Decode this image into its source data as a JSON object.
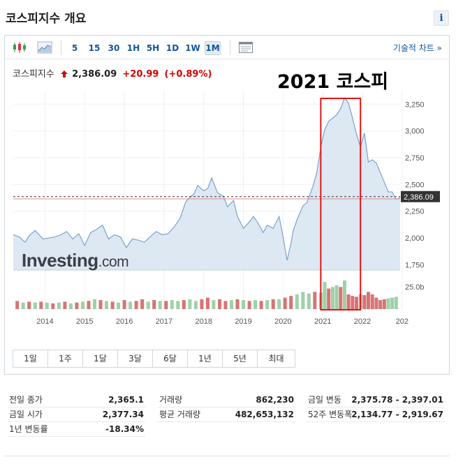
{
  "page": {
    "title": "코스피지수 개요",
    "info_label": "i"
  },
  "toolbar": {
    "intervals": [
      {
        "label": "5",
        "active": false
      },
      {
        "label": "15",
        "active": false
      },
      {
        "label": "30",
        "active": false
      },
      {
        "label": "1H",
        "active": false
      },
      {
        "label": "5H",
        "active": false
      },
      {
        "label": "1D",
        "active": false
      },
      {
        "label": "1W",
        "active": false
      },
      {
        "label": "1M",
        "active": true
      }
    ],
    "tech_chart_link": "기술적 차트 »"
  },
  "quote": {
    "name": "코스피지수",
    "price": "2,386.09",
    "change": "+20.99",
    "change_pct": "(+0.89%)"
  },
  "annotation": {
    "text": "2021 코스피",
    "box_color": "#e01515"
  },
  "ranges": [
    "1일",
    "1주",
    "1달",
    "3달",
    "6달",
    "1년",
    "5년",
    "최대"
  ],
  "watermark": {
    "brand": "Investing",
    "suffix": ".com"
  },
  "colors": {
    "line": "#6f9ccb",
    "area": "#dde8f3",
    "vol_up": "#9fd1a8",
    "vol_down": "#d97373",
    "price_label_bg": "#333333",
    "prev_close_line": "#e08a8a"
  },
  "chart_data": {
    "type": "area",
    "x_unit": "year",
    "x_ticks": [
      "2014",
      "2015",
      "2016",
      "2017",
      "2018",
      "2019",
      "2020",
      "2021",
      "2022",
      "202"
    ],
    "y_ticks": [
      "3,250",
      "3,000",
      "2,750",
      "2,500",
      "2,250",
      "2,000",
      "1,750"
    ],
    "y_tick_values": [
      3250,
      3000,
      2750,
      2500,
      2250,
      2000,
      1750
    ],
    "ylim": [
      1700,
      3330
    ],
    "xlim": [
      2013.2,
      2022.95
    ],
    "volume_label": "25.0b",
    "volume_max": 40,
    "last_price_label": "2,386.09",
    "last_price": 2386.09,
    "prev_close": 2365.1,
    "highlight_range": [
      2020.95,
      2021.95
    ],
    "series": [
      {
        "x": [
          2013.2,
          2013.35,
          2013.5,
          2013.6,
          2013.75,
          2013.95,
          2014.1,
          2014.25,
          2014.4,
          2014.55,
          2014.7,
          2014.85,
          2015.0,
          2015.15,
          2015.3,
          2015.45,
          2015.6,
          2015.75,
          2015.9,
          2016.05,
          2016.2,
          2016.35,
          2016.5,
          2016.65,
          2016.8,
          2016.95,
          2017.1,
          2017.25,
          2017.4,
          2017.55,
          2017.65,
          2017.75,
          2017.85,
          2018.0,
          2018.1,
          2018.2,
          2018.35,
          2018.5,
          2018.6,
          2018.75,
          2018.85,
          2019.0,
          2019.15,
          2019.25,
          2019.35,
          2019.5,
          2019.6,
          2019.75,
          2019.9,
          2020.0,
          2020.1,
          2020.2,
          2020.25,
          2020.35,
          2020.5,
          2020.6,
          2020.75,
          2020.85,
          2020.95,
          2021.05,
          2021.15,
          2021.25,
          2021.35,
          2021.45,
          2021.55,
          2021.65,
          2021.75,
          2021.85,
          2021.95,
          2022.05,
          2022.15,
          2022.25,
          2022.35,
          2022.45,
          2022.55,
          2022.65,
          2022.75,
          2022.85,
          2022.95
        ],
        "y": [
          2030,
          2010,
          1960,
          2020,
          2070,
          1990,
          2000,
          2010,
          2030,
          2060,
          1990,
          2040,
          1930,
          2050,
          2080,
          2120,
          1990,
          2030,
          2010,
          1910,
          1990,
          1980,
          1960,
          2010,
          2060,
          2030,
          2040,
          2100,
          2180,
          2340,
          2380,
          2410,
          2490,
          2440,
          2460,
          2560,
          2420,
          2390,
          2290,
          2350,
          2200,
          2090,
          2150,
          2200,
          2150,
          2050,
          2120,
          2090,
          2200,
          2010,
          1790,
          1950,
          2060,
          2170,
          2300,
          2330,
          2480,
          2610,
          2850,
          3010,
          3090,
          3120,
          3150,
          3210,
          3310,
          3260,
          3120,
          2970,
          2850,
          2980,
          2710,
          2730,
          2700,
          2610,
          2520,
          2430,
          2430,
          2360,
          2380
        ]
      }
    ],
    "volume": [
      {
        "x": 2013.3,
        "v": 10,
        "dir": "down"
      },
      {
        "x": 2013.45,
        "v": 8,
        "dir": "up"
      },
      {
        "x": 2013.6,
        "v": 9,
        "dir": "down"
      },
      {
        "x": 2013.75,
        "v": 8,
        "dir": "up"
      },
      {
        "x": 2013.9,
        "v": 9,
        "dir": "down"
      },
      {
        "x": 2014.05,
        "v": 8,
        "dir": "up"
      },
      {
        "x": 2014.2,
        "v": 7,
        "dir": "down"
      },
      {
        "x": 2014.35,
        "v": 8,
        "dir": "up"
      },
      {
        "x": 2014.5,
        "v": 9,
        "dir": "down"
      },
      {
        "x": 2014.65,
        "v": 7,
        "dir": "up"
      },
      {
        "x": 2014.8,
        "v": 8,
        "dir": "down"
      },
      {
        "x": 2014.95,
        "v": 9,
        "dir": "up"
      },
      {
        "x": 2015.1,
        "v": 10,
        "dir": "down"
      },
      {
        "x": 2015.25,
        "v": 12,
        "dir": "up"
      },
      {
        "x": 2015.4,
        "v": 11,
        "dir": "down"
      },
      {
        "x": 2015.55,
        "v": 10,
        "dir": "up"
      },
      {
        "x": 2015.7,
        "v": 9,
        "dir": "down"
      },
      {
        "x": 2015.85,
        "v": 8,
        "dir": "up"
      },
      {
        "x": 2016.0,
        "v": 11,
        "dir": "down"
      },
      {
        "x": 2016.15,
        "v": 9,
        "dir": "up"
      },
      {
        "x": 2016.3,
        "v": 10,
        "dir": "down"
      },
      {
        "x": 2016.45,
        "v": 12,
        "dir": "down"
      },
      {
        "x": 2016.6,
        "v": 9,
        "dir": "up"
      },
      {
        "x": 2016.75,
        "v": 11,
        "dir": "down"
      },
      {
        "x": 2016.9,
        "v": 10,
        "dir": "up"
      },
      {
        "x": 2017.05,
        "v": 10,
        "dir": "down"
      },
      {
        "x": 2017.2,
        "v": 11,
        "dir": "up"
      },
      {
        "x": 2017.35,
        "v": 10,
        "dir": "up"
      },
      {
        "x": 2017.5,
        "v": 11,
        "dir": "down"
      },
      {
        "x": 2017.65,
        "v": 12,
        "dir": "up"
      },
      {
        "x": 2017.8,
        "v": 10,
        "dir": "up"
      },
      {
        "x": 2017.95,
        "v": 12,
        "dir": "down"
      },
      {
        "x": 2018.1,
        "v": 14,
        "dir": "down"
      },
      {
        "x": 2018.25,
        "v": 11,
        "dir": "up"
      },
      {
        "x": 2018.4,
        "v": 12,
        "dir": "down"
      },
      {
        "x": 2018.55,
        "v": 10,
        "dir": "down"
      },
      {
        "x": 2018.7,
        "v": 11,
        "dir": "up"
      },
      {
        "x": 2018.85,
        "v": 12,
        "dir": "down"
      },
      {
        "x": 2019.0,
        "v": 11,
        "dir": "up"
      },
      {
        "x": 2019.15,
        "v": 10,
        "dir": "down"
      },
      {
        "x": 2019.3,
        "v": 11,
        "dir": "up"
      },
      {
        "x": 2019.45,
        "v": 10,
        "dir": "down"
      },
      {
        "x": 2019.6,
        "v": 11,
        "dir": "up"
      },
      {
        "x": 2019.75,
        "v": 12,
        "dir": "down"
      },
      {
        "x": 2019.9,
        "v": 12,
        "dir": "up"
      },
      {
        "x": 2020.05,
        "v": 14,
        "dir": "down"
      },
      {
        "x": 2020.2,
        "v": 16,
        "dir": "down"
      },
      {
        "x": 2020.35,
        "v": 18,
        "dir": "up"
      },
      {
        "x": 2020.5,
        "v": 21,
        "dir": "up"
      },
      {
        "x": 2020.65,
        "v": 19,
        "dir": "up"
      },
      {
        "x": 2020.8,
        "v": 21,
        "dir": "down"
      },
      {
        "x": 2020.95,
        "v": 20,
        "dir": "up"
      },
      {
        "x": 2021.05,
        "v": 33,
        "dir": "up"
      },
      {
        "x": 2021.15,
        "v": 25,
        "dir": "down"
      },
      {
        "x": 2021.25,
        "v": 27,
        "dir": "up"
      },
      {
        "x": 2021.35,
        "v": 29,
        "dir": "up"
      },
      {
        "x": 2021.45,
        "v": 27,
        "dir": "down"
      },
      {
        "x": 2021.55,
        "v": 35,
        "dir": "up"
      },
      {
        "x": 2021.65,
        "v": 18,
        "dir": "down"
      },
      {
        "x": 2021.75,
        "v": 16,
        "dir": "down"
      },
      {
        "x": 2021.85,
        "v": 15,
        "dir": "down"
      },
      {
        "x": 2021.95,
        "v": 18,
        "dir": "up"
      },
      {
        "x": 2022.05,
        "v": 17,
        "dir": "down"
      },
      {
        "x": 2022.15,
        "v": 21,
        "dir": "down"
      },
      {
        "x": 2022.25,
        "v": 18,
        "dir": "down"
      },
      {
        "x": 2022.35,
        "v": 14,
        "dir": "down"
      },
      {
        "x": 2022.45,
        "v": 11,
        "dir": "down"
      },
      {
        "x": 2022.55,
        "v": 12,
        "dir": "down"
      },
      {
        "x": 2022.65,
        "v": 13,
        "dir": "up"
      },
      {
        "x": 2022.75,
        "v": 14,
        "dir": "up"
      },
      {
        "x": 2022.85,
        "v": 15,
        "dir": "up"
      }
    ]
  },
  "stats": {
    "col1": [
      {
        "label": "전일 종가",
        "value": "2,365.1"
      },
      {
        "label": "금일 시가",
        "value": "2,377.34"
      },
      {
        "label": "1년 변동률",
        "value": "-18.34%"
      }
    ],
    "col2": [
      {
        "label": "거래량",
        "value": "862,230"
      },
      {
        "label": "평균 거래량",
        "value": "482,653,132"
      }
    ],
    "col3": [
      {
        "label": "금일 변동",
        "value": "2,375.78 - 2,397.01"
      },
      {
        "label": "52주 변동폭",
        "value": "2,134.77 - 2,919.67"
      }
    ]
  }
}
